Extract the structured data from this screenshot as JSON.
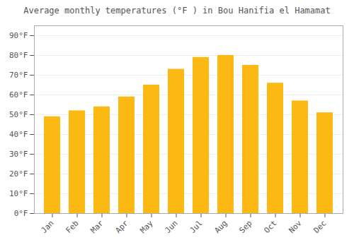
{
  "chart_data": {
    "type": "bar",
    "title": "Average monthly temperatures (°F ) in Bou Hanifia el Hamamat",
    "categories": [
      "Jan",
      "Feb",
      "Mar",
      "Apr",
      "May",
      "Jun",
      "Jul",
      "Aug",
      "Sep",
      "Oct",
      "Nov",
      "Dec"
    ],
    "values": [
      49,
      52,
      54,
      59,
      65,
      73,
      79,
      80,
      75,
      66,
      57,
      51
    ],
    "color": "#FDB913",
    "ylim": [
      0,
      95
    ],
    "yticks": [
      {
        "value": 0,
        "label": "0°F"
      },
      {
        "value": 10,
        "label": "10°F"
      },
      {
        "value": 20,
        "label": "20°F"
      },
      {
        "value": 30,
        "label": "30°F"
      },
      {
        "value": 40,
        "label": "40°F"
      },
      {
        "value": 50,
        "label": "50°F"
      },
      {
        "value": 60,
        "label": "60°F"
      },
      {
        "value": 70,
        "label": "70°F"
      },
      {
        "value": 80,
        "label": "80°F"
      },
      {
        "value": 90,
        "label": "90°F"
      }
    ],
    "grid": true
  }
}
